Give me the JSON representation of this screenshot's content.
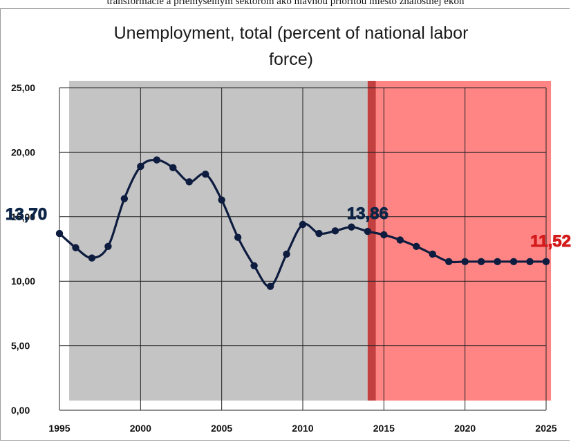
{
  "header_text": "transformácie a priemyselným sektorom ako hlavnou prioritou miesto znalostnej ekon",
  "chart_data": {
    "type": "line",
    "title_lines": [
      "Unemployment, total (percent of national labor",
      "force)"
    ],
    "xlabel": "",
    "ylabel": "",
    "xlim": [
      1995,
      2025
    ],
    "ylim": [
      0,
      25
    ],
    "x_ticks": [
      1995,
      2000,
      2005,
      2010,
      2015,
      2020,
      2025
    ],
    "x_tick_labels": [
      "1995",
      "2000",
      "2005",
      "2010",
      "2015",
      "2020",
      "2025"
    ],
    "y_ticks": [
      0,
      5,
      10,
      15,
      20,
      25
    ],
    "y_tick_labels": [
      "0,00",
      "5,00",
      "10,00",
      "15,00",
      "20,00",
      "25,00"
    ],
    "grid": true,
    "series": [
      {
        "x": [
          1995,
          1996,
          1997,
          1998,
          1999,
          2000,
          2001,
          2002,
          2003,
          2004,
          2005,
          2006,
          2007,
          2008,
          2009,
          2010,
          2011,
          2012,
          2013,
          2014,
          2015,
          2016,
          2017,
          2018,
          2019,
          2020,
          2021,
          2022,
          2023,
          2024,
          2025
        ],
        "values": [
          13.7,
          12.6,
          11.8,
          12.7,
          16.4,
          18.9,
          19.4,
          18.8,
          17.7,
          18.3,
          16.3,
          13.4,
          11.2,
          9.6,
          12.1,
          14.4,
          13.7,
          13.9,
          14.2,
          13.86,
          13.6,
          13.2,
          12.7,
          12.1,
          11.52,
          11.52,
          11.52,
          11.52,
          11.52,
          11.52,
          11.52
        ],
        "color": "#0d1c3f"
      }
    ],
    "shaded_regions": [
      {
        "from": 1995.6,
        "to": 2014,
        "color": "#c4c4c4"
      },
      {
        "from": 2014,
        "to": 2025.3,
        "color": "#ff8585"
      },
      {
        "from": 2014,
        "to": 2014.5,
        "color": "#c24040"
      }
    ],
    "annotations": [
      {
        "text": "13,70",
        "x": 1995,
        "y": 13.7,
        "color": "#0d2547"
      },
      {
        "text": "13,86",
        "x": 2014,
        "y": 13.86,
        "color": "#0d2547"
      },
      {
        "text": "11,52",
        "x": 2025,
        "y": 11.52,
        "color": "#d41a1a"
      }
    ]
  }
}
